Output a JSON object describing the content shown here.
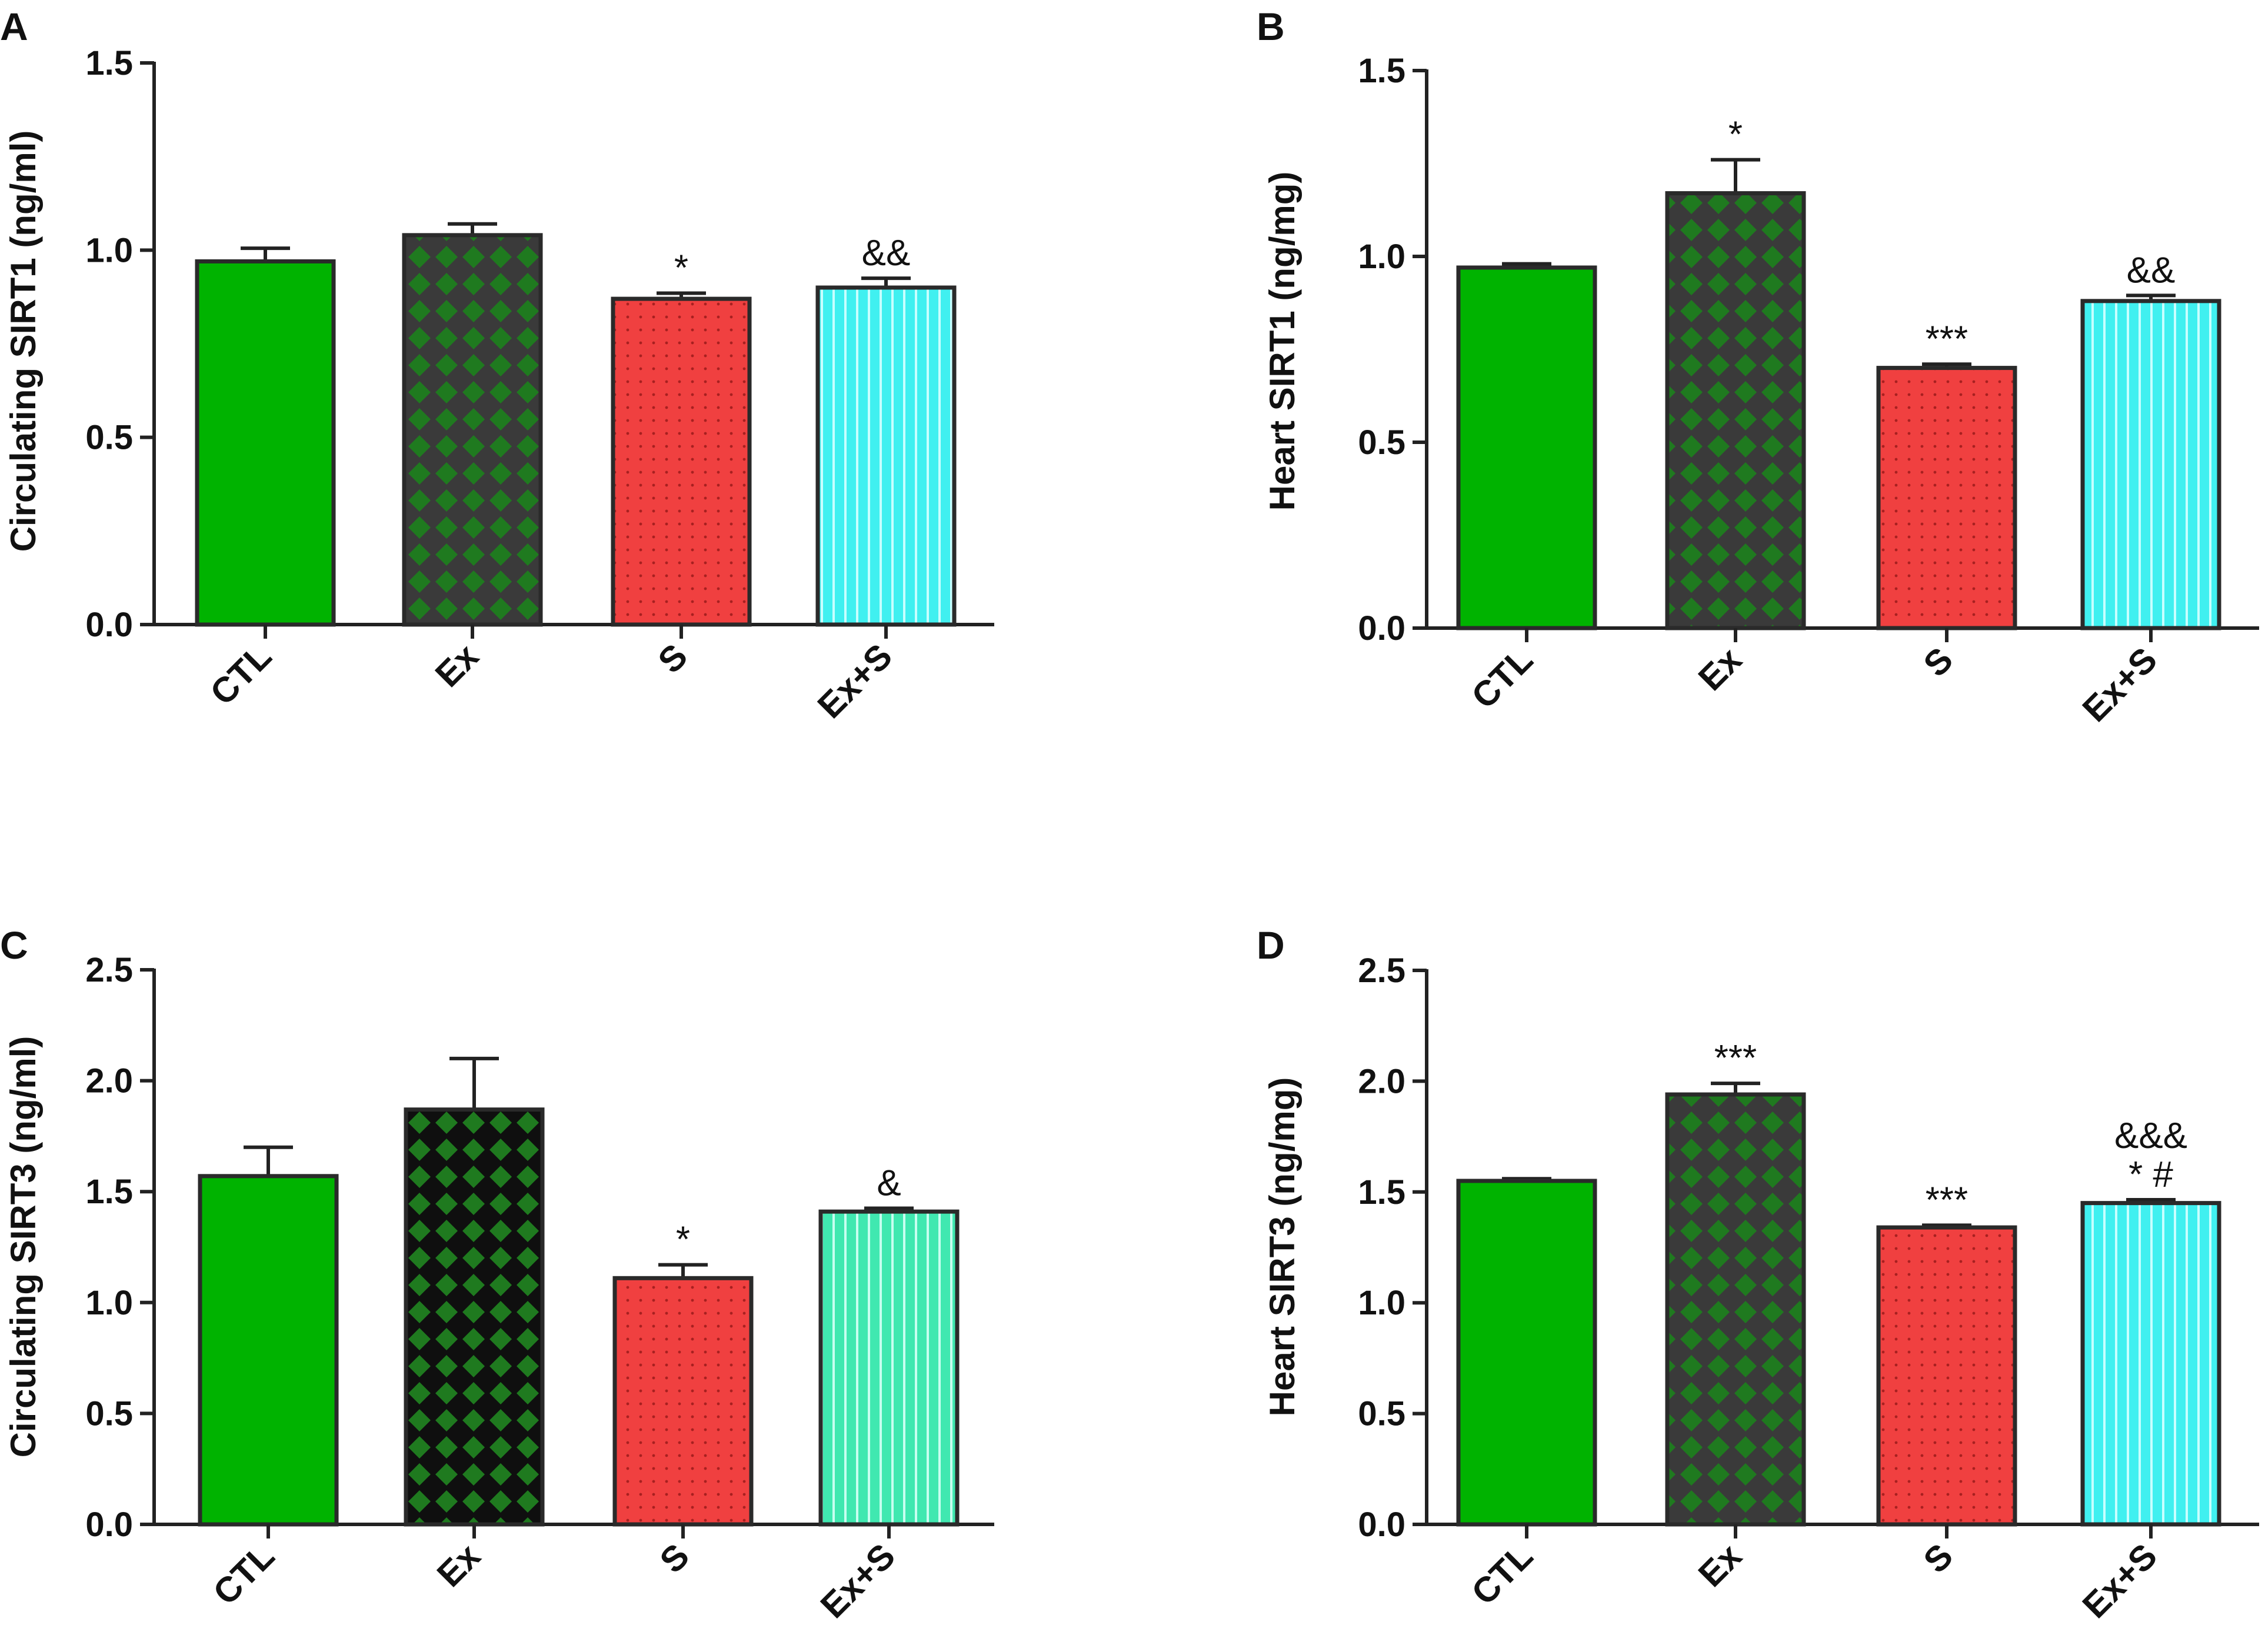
{
  "chart_data": [
    {
      "panel": "A",
      "type": "bar",
      "ylabel": "Circulating SIRT1 (ng/ml)",
      "ylim": [
        0,
        1.5
      ],
      "yticks": [
        0.0,
        0.5,
        1.0,
        1.5
      ],
      "ytick_labels": [
        "0.0",
        "0.5",
        "1.0",
        "1.5"
      ],
      "categories": [
        "CTL",
        "Ex",
        "S",
        "Ex+S"
      ],
      "values": [
        0.97,
        1.04,
        0.87,
        0.9
      ],
      "errors": [
        0.035,
        0.03,
        0.015,
        0.025
      ],
      "annotations": [
        [],
        [],
        [
          "*"
        ],
        [
          "&&"
        ]
      ],
      "colors": [
        "#00b300",
        "#1f7a1f",
        "#f04040",
        "#40f0f0"
      ],
      "patterns": [
        "solid",
        "diamond",
        "dots",
        "vstripes"
      ]
    },
    {
      "panel": "B",
      "type": "bar",
      "ylabel": "Heart SIRT1 (ng/mg)",
      "ylim": [
        0,
        1.5
      ],
      "yticks": [
        0.0,
        0.5,
        1.0,
        1.5
      ],
      "ytick_labels": [
        "0.0",
        "0.5",
        "1.0",
        "1.5"
      ],
      "categories": [
        "CTL",
        "Ex",
        "S",
        "Ex+S"
      ],
      "values": [
        0.97,
        1.17,
        0.7,
        0.88
      ],
      "errors": [
        0.01,
        0.09,
        0.01,
        0.015
      ],
      "annotations": [
        [],
        [
          "*"
        ],
        [
          "***"
        ],
        [
          "&&"
        ]
      ],
      "colors": [
        "#00b300",
        "#1f7a1f",
        "#f04040",
        "#40f0f0"
      ],
      "patterns": [
        "solid",
        "diamond",
        "dots",
        "vstripes"
      ]
    },
    {
      "panel": "C",
      "type": "bar",
      "ylabel": "Circulating SIRT3 (ng/ml)",
      "ylim": [
        0,
        2.5
      ],
      "yticks": [
        0.0,
        0.5,
        1.0,
        1.5,
        2.0,
        2.5
      ],
      "ytick_labels": [
        "0.0",
        "0.5",
        "1.0",
        "1.5",
        "2.0",
        "2.5"
      ],
      "categories": [
        "CTL",
        "Ex",
        "S",
        "Ex+S"
      ],
      "values": [
        1.57,
        1.87,
        1.11,
        1.41
      ],
      "errors": [
        0.13,
        0.23,
        0.06,
        0.015
      ],
      "annotations": [
        [],
        [],
        [
          "*"
        ],
        [
          "&"
        ]
      ],
      "colors": [
        "#00b300",
        "#1f7a1f",
        "#f04040",
        "#40e8b0"
      ],
      "patterns": [
        "solid",
        "diamond-dark",
        "dots",
        "vstripes"
      ]
    },
    {
      "panel": "D",
      "type": "bar",
      "ylabel": "Heart SIRT3 (ng/mg)",
      "ylim": [
        0,
        2.5
      ],
      "yticks": [
        0.0,
        0.5,
        1.0,
        1.5,
        2.0,
        2.5
      ],
      "ytick_labels": [
        "0.0",
        "0.5",
        "1.0",
        "1.5",
        "2.0",
        "2.5"
      ],
      "categories": [
        "CTL",
        "Ex",
        "S",
        "Ex+S"
      ],
      "values": [
        1.55,
        1.94,
        1.34,
        1.45
      ],
      "errors": [
        0.01,
        0.05,
        0.01,
        0.015
      ],
      "annotations": [
        [],
        [
          "***"
        ],
        [
          "***"
        ],
        [
          "* #",
          "&&&"
        ]
      ],
      "colors": [
        "#00b300",
        "#1f7a1f",
        "#f04040",
        "#40f0f0"
      ],
      "patterns": [
        "solid",
        "diamond",
        "dots",
        "vstripes"
      ]
    }
  ]
}
